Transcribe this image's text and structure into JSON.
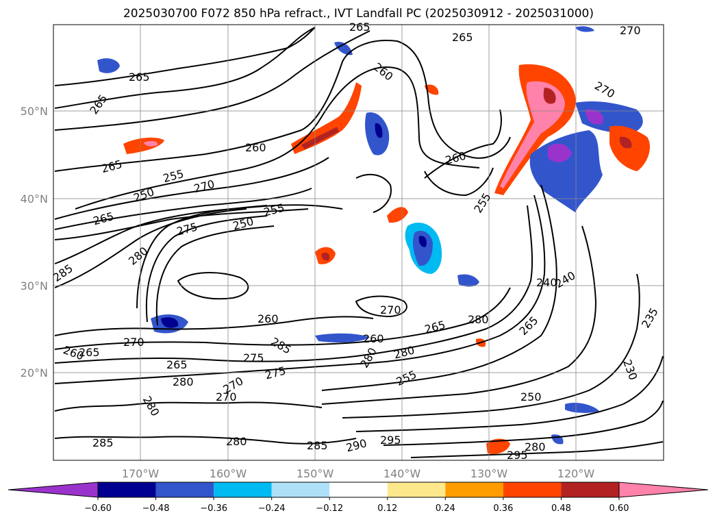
{
  "title": "2025030700 F072 850 hPa refract., IVT Landfall PC (2025030912 - 2025031000)",
  "lon_ticks": [
    "170°W",
    "160°W",
    "150°W",
    "140°W",
    "130°W",
    "120°W"
  ],
  "lat_ticks": [
    "50°N",
    "40°N",
    "30°N",
    "20°N"
  ],
  "contour_labels": [
    "265",
    "265",
    "260",
    "265",
    "265",
    "260",
    "270",
    "270",
    "265",
    "260",
    "250",
    "255",
    "270",
    "265",
    "255",
    "250",
    "255",
    "275",
    "280",
    "260",
    "285",
    "265",
    "240",
    "270",
    "270",
    "265",
    "260",
    "265",
    "280",
    "280",
    "280",
    "285",
    "275",
    "270",
    "260",
    "265",
    "275",
    "280",
    "280",
    "270",
    "255",
    "280",
    "250",
    "285",
    "285",
    "290",
    "295",
    "280",
    "295",
    "240",
    "235",
    "230"
  ],
  "colorbar": {
    "ticks": [
      "−0.60",
      "−0.48",
      "−0.36",
      "−0.24",
      "−0.12",
      "0.12",
      "0.24",
      "0.36",
      "0.48",
      "0.60"
    ],
    "colors": [
      "#9a33cc",
      "#000090",
      "#3355cc",
      "#00bbf2",
      "#aee1f8",
      "#ffffff",
      "#fde88c",
      "#ff9d00",
      "#ff4400",
      "#b22222",
      "#ff82aa"
    ]
  },
  "chart_data": {
    "type": "contour-map",
    "field": "850 hPa refractivity (contours) + IVT Landfall PC (shaded)",
    "lon_range": [
      "180°W",
      "110°W"
    ],
    "lat_range": [
      "10°N",
      "60°N"
    ],
    "contour_levels_shown": [
      230,
      235,
      240,
      250,
      255,
      260,
      265,
      270,
      275,
      280,
      285,
      290,
      295
    ],
    "shading_levels": [
      -0.6,
      -0.48,
      -0.36,
      -0.24,
      -0.12,
      0.12,
      0.24,
      0.36,
      0.48,
      0.6
    ]
  }
}
